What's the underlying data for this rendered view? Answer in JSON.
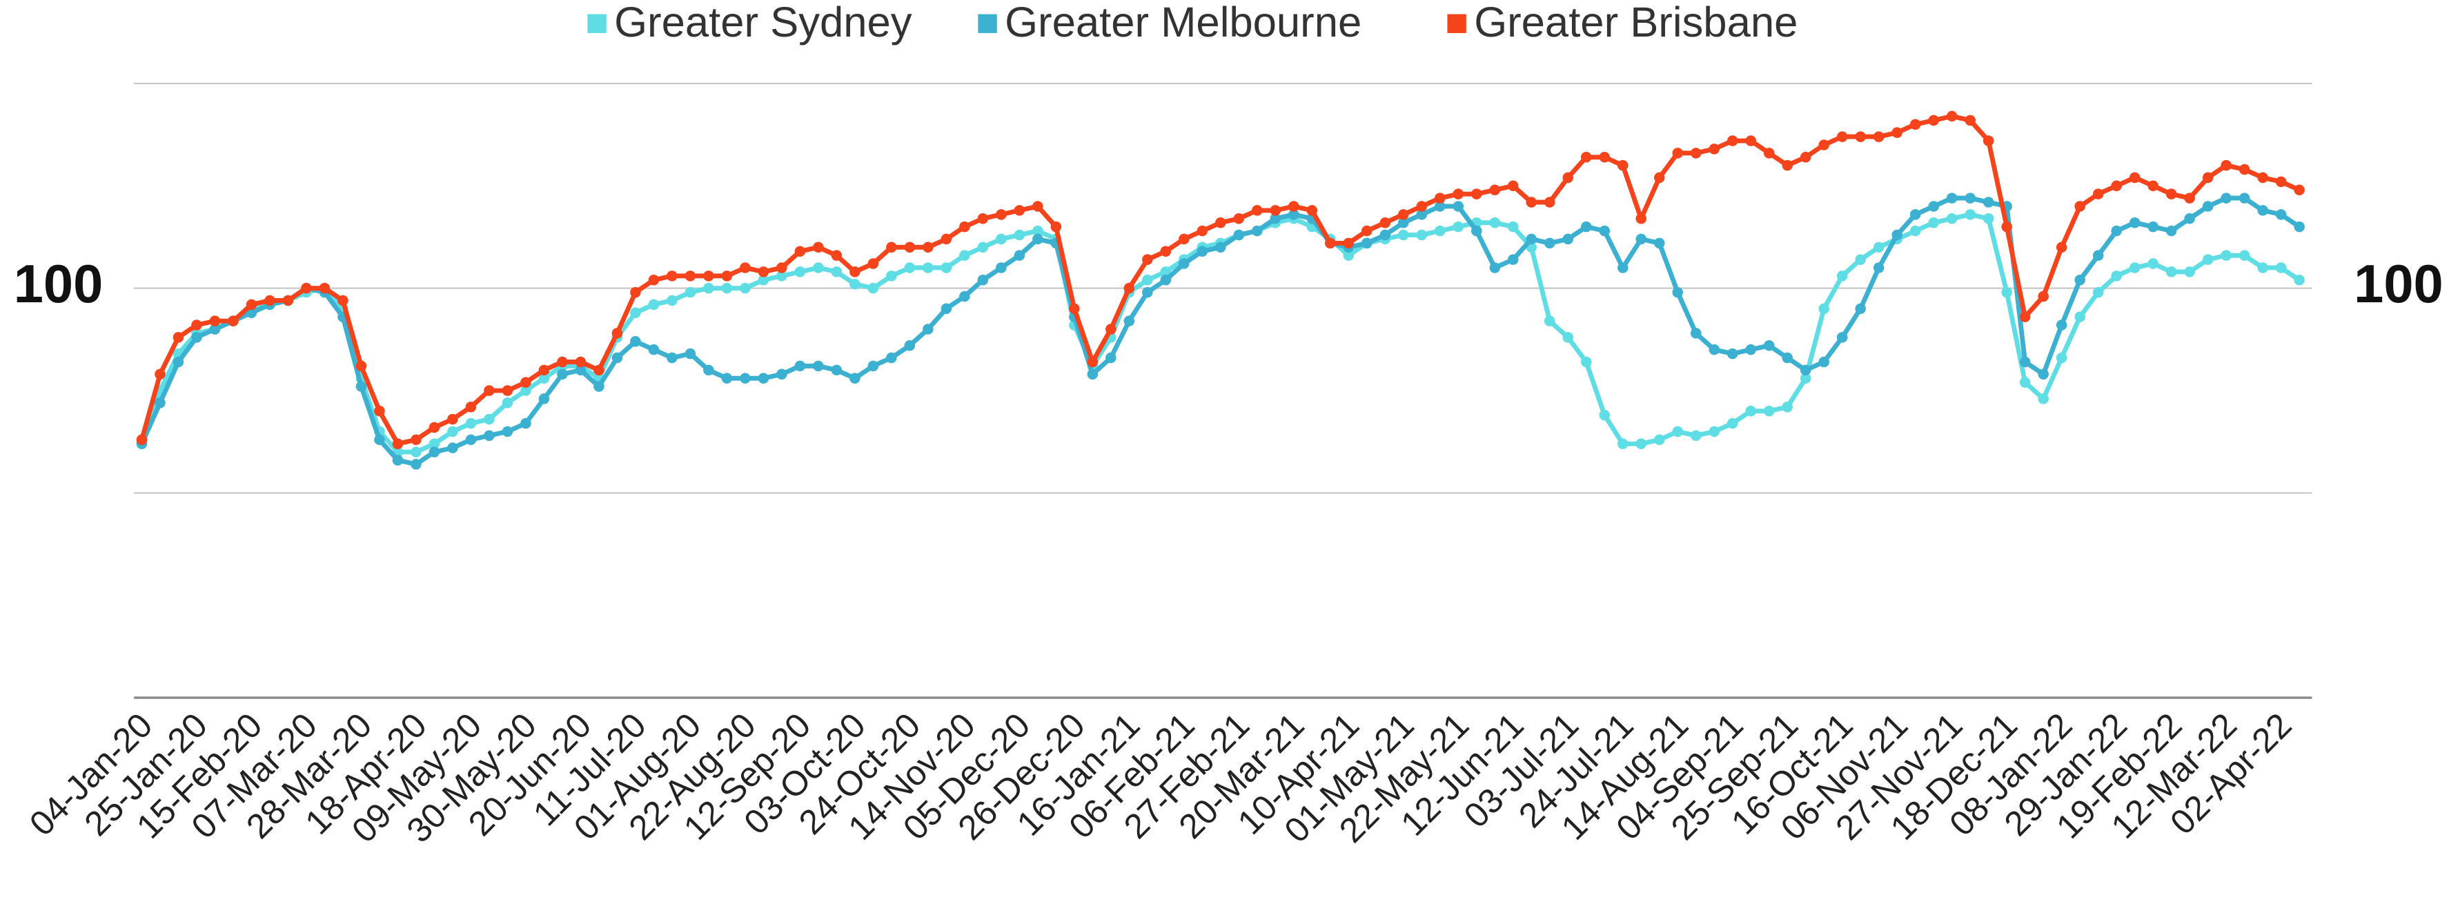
{
  "chart_data": {
    "type": "line",
    "categories": [
      "04-Jan-20",
      null,
      null,
      "25-Jan-20",
      null,
      null,
      "15-Feb-20",
      null,
      null,
      "07-Mar-20",
      null,
      null,
      "28-Mar-20",
      null,
      null,
      "18-Apr-20",
      null,
      null,
      "09-May-20",
      null,
      null,
      "30-May-20",
      null,
      null,
      "20-Jun-20",
      null,
      null,
      "11-Jul-20",
      null,
      null,
      "01-Aug-20",
      null,
      null,
      "22-Aug-20",
      null,
      null,
      "12-Sep-20",
      null,
      null,
      "03-Oct-20",
      null,
      null,
      "24-Oct-20",
      null,
      null,
      "14-Nov-20",
      null,
      null,
      "05-Dec-20",
      null,
      null,
      "26-Dec-20",
      null,
      null,
      "16-Jan-21",
      null,
      null,
      "06-Feb-21",
      null,
      null,
      "27-Feb-21",
      null,
      null,
      "20-Mar-21",
      null,
      null,
      "10-Apr-21",
      null,
      null,
      "01-May-21",
      null,
      null,
      "22-May-21",
      null,
      null,
      "12-Jun-21",
      null,
      null,
      "03-Jul-21",
      null,
      null,
      "24-Jul-21",
      null,
      null,
      "14-Aug-21",
      null,
      null,
      "04-Sep-21",
      null,
      null,
      "25-Sep-21",
      null,
      null,
      "16-Oct-21",
      null,
      null,
      "06-Nov-21",
      null,
      null,
      "27-Nov-21",
      null,
      null,
      "18-Dec-21",
      null,
      null,
      "08-Jan-22",
      null,
      null,
      "29-Jan-22",
      null,
      null,
      "19-Feb-22",
      null,
      null,
      "12-Mar-22",
      null,
      null,
      "02-Apr-22",
      null
    ],
    "series": [
      {
        "name": "Greater Sydney",
        "color": "#5fdde5",
        "values": [
          63,
          75,
          84,
          89,
          90,
          92,
          95,
          96,
          97,
          99,
          100,
          95,
          78,
          65,
          60,
          60,
          62,
          65,
          67,
          68,
          72,
          75,
          78,
          81,
          81,
          78,
          88,
          94,
          96,
          97,
          99,
          100,
          100,
          100,
          102,
          103,
          104,
          105,
          104,
          101,
          100,
          103,
          105,
          105,
          105,
          108,
          110,
          112,
          113,
          114,
          112,
          91,
          81,
          88,
          99,
          102,
          104,
          107,
          110,
          111,
          113,
          114,
          116,
          117,
          115,
          112,
          108,
          111,
          112,
          113,
          113,
          114,
          115,
          116,
          116,
          115,
          110,
          92,
          88,
          82,
          69,
          62,
          62,
          63,
          65,
          64,
          65,
          67,
          70,
          70,
          71,
          78,
          95,
          103,
          107,
          110,
          112,
          114,
          116,
          117,
          118,
          117,
          99,
          77,
          73,
          83,
          93,
          99,
          103,
          105,
          106,
          104,
          104,
          107,
          108,
          108,
          105,
          105,
          102
        ]
      },
      {
        "name": "Greater Melbourne",
        "color": "#3bb0d0",
        "values": [
          62,
          72,
          82,
          88,
          90,
          92,
          94,
          96,
          97,
          100,
          99,
          93,
          76,
          63,
          58,
          57,
          60,
          61,
          63,
          64,
          65,
          67,
          73,
          79,
          80,
          76,
          83,
          87,
          85,
          83,
          84,
          80,
          78,
          78,
          78,
          79,
          81,
          81,
          80,
          78,
          81,
          83,
          86,
          90,
          95,
          98,
          102,
          105,
          108,
          112,
          111,
          93,
          79,
          83,
          92,
          99,
          102,
          106,
          109,
          110,
          113,
          114,
          117,
          118,
          117,
          111,
          110,
          111,
          113,
          116,
          118,
          120,
          120,
          114,
          105,
          107,
          112,
          111,
          112,
          115,
          114,
          105,
          112,
          111,
          99,
          89,
          85,
          84,
          85,
          86,
          83,
          80,
          82,
          88,
          95,
          105,
          113,
          118,
          120,
          122,
          122,
          121,
          120,
          82,
          79,
          91,
          102,
          108,
          114,
          116,
          115,
          114,
          117,
          120,
          122,
          122,
          119,
          118,
          115
        ]
      },
      {
        "name": "Greater Brisbane",
        "color": "#f5431b",
        "values": [
          63,
          79,
          88,
          91,
          92,
          92,
          96,
          97,
          97,
          100,
          100,
          97,
          81,
          70,
          62,
          63,
          66,
          68,
          71,
          75,
          75,
          77,
          80,
          82,
          82,
          80,
          89,
          99,
          102,
          103,
          103,
          103,
          103,
          105,
          104,
          105,
          109,
          110,
          108,
          104,
          106,
          110,
          110,
          110,
          112,
          115,
          117,
          118,
          119,
          120,
          115,
          95,
          82,
          90,
          100,
          107,
          109,
          112,
          114,
          116,
          117,
          119,
          119,
          120,
          119,
          111,
          111,
          114,
          116,
          118,
          120,
          122,
          123,
          123,
          124,
          125,
          121,
          121,
          127,
          132,
          132,
          130,
          117,
          127,
          133,
          133,
          134,
          136,
          136,
          133,
          130,
          132,
          135,
          137,
          137,
          137,
          138,
          140,
          141,
          142,
          141,
          136,
          115,
          93,
          98,
          110,
          120,
          123,
          125,
          127,
          125,
          123,
          122,
          127,
          130,
          129,
          127,
          126,
          124
        ]
      }
    ],
    "ylim": [
      0,
      150
    ],
    "yticks": [
      {
        "value": 0,
        "label": null
      },
      {
        "value": 50,
        "label": null
      },
      100,
      {
        "value": 150,
        "label": null
      }
    ],
    "y2lim": [
      0,
      150
    ],
    "y2ticks": [
      100
    ],
    "grid": true,
    "legend": "top"
  }
}
